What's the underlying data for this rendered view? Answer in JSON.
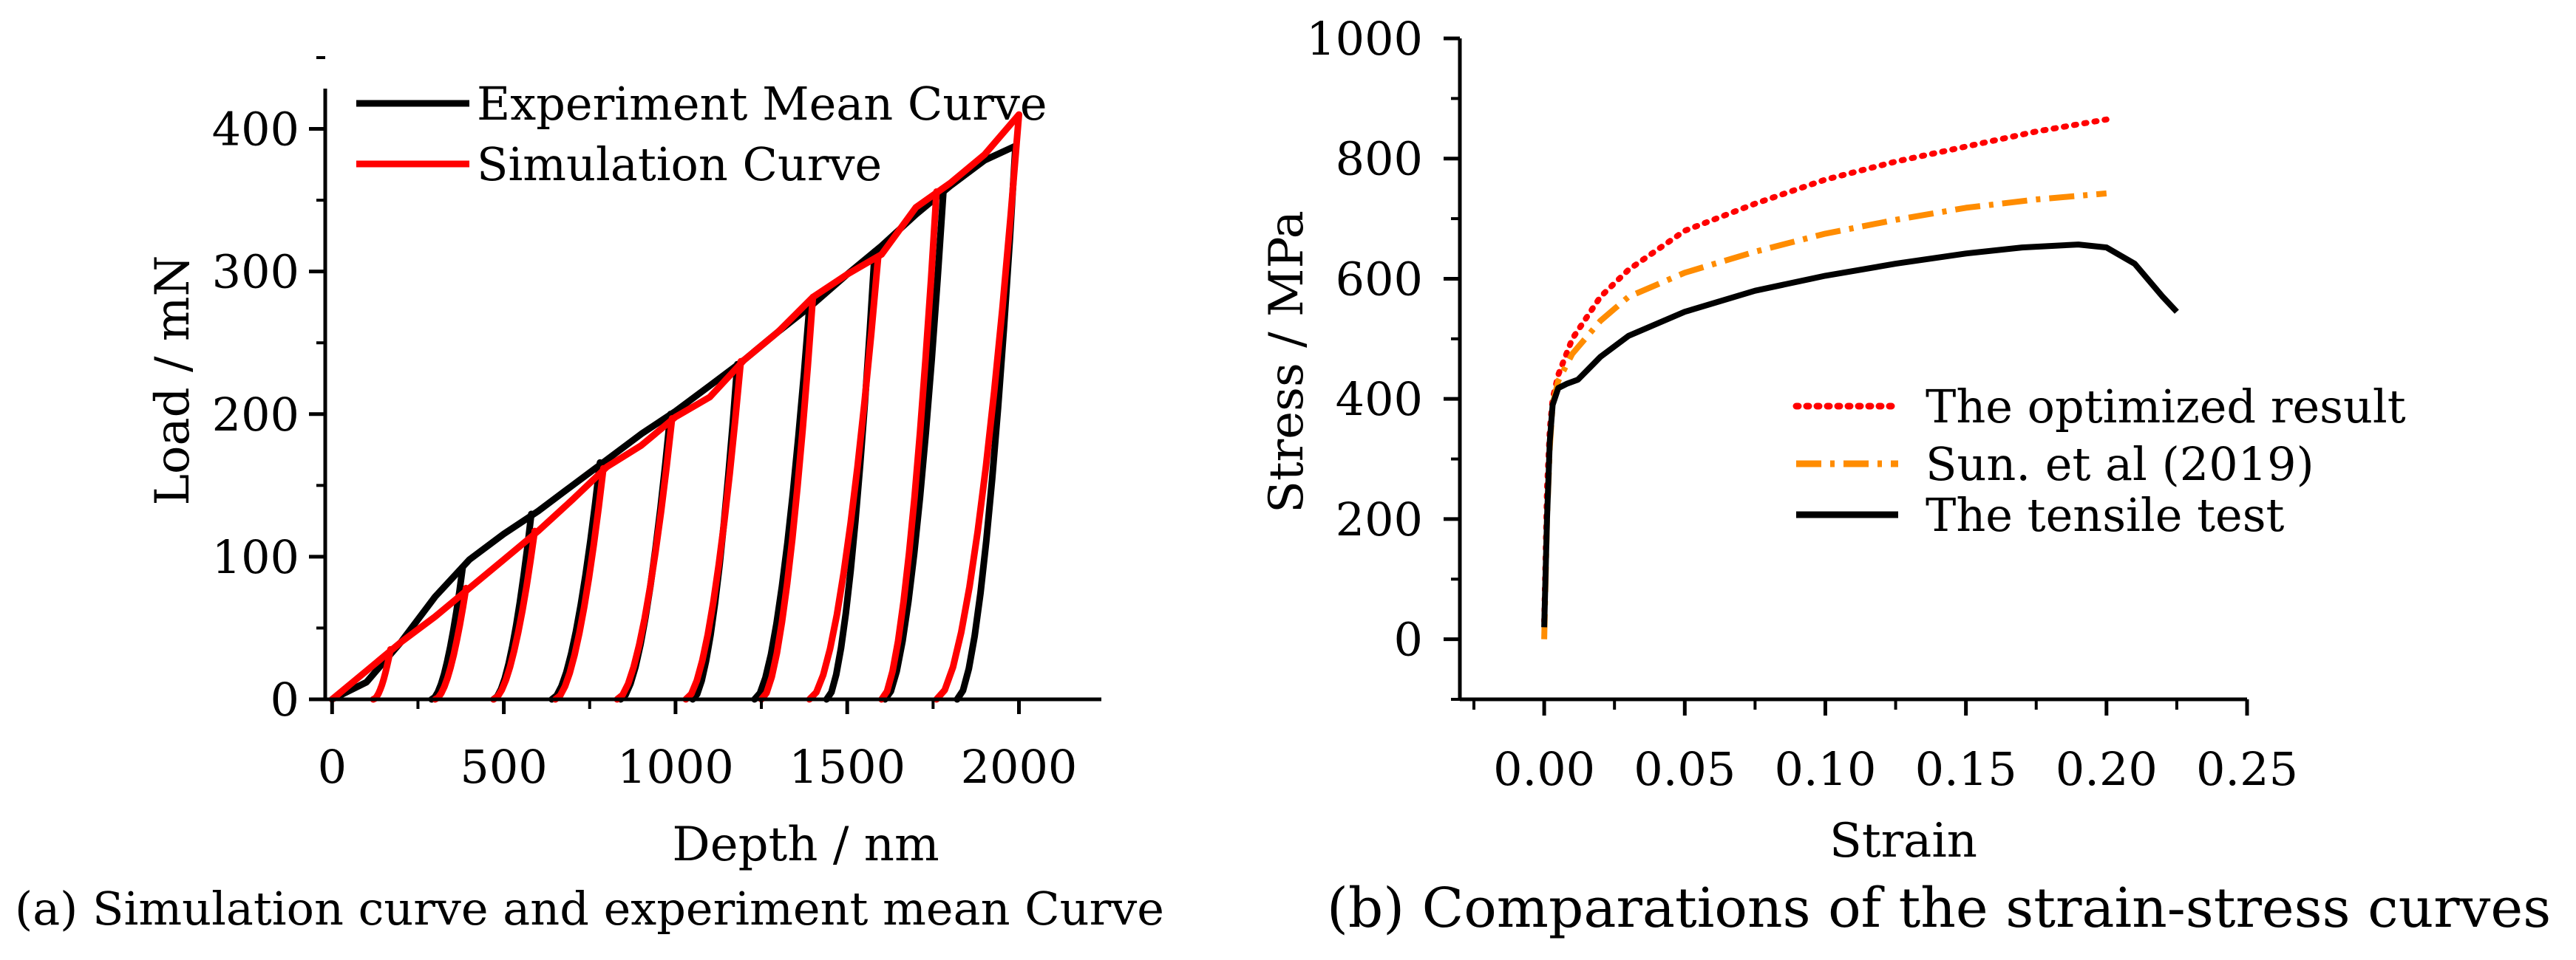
{
  "captions": {
    "a": "(a)  Simulation curve and experiment mean Curve",
    "b": "(b) Comparations of the strain-stress curves"
  },
  "chart_data": [
    {
      "type": "line",
      "title": "",
      "xlabel": "Depth / nm",
      "ylabel": "Load / mN",
      "xlim": [
        -20,
        2240
      ],
      "ylim": [
        0,
        450
      ],
      "xticks": [
        0,
        500,
        1000,
        1500,
        2000
      ],
      "yticks": [
        0,
        100,
        200,
        300,
        400
      ],
      "grid": false,
      "legend_position": "top-left",
      "series": [
        {
          "name": "Experiment Mean Curve",
          "color": "#000000",
          "style": "solid",
          "loading": [
            [
              0,
              0
            ],
            [
              100,
              12
            ],
            [
              200,
              40
            ],
            [
              300,
              72
            ],
            [
              400,
              98
            ],
            [
              500,
              116
            ],
            [
              600,
              132
            ],
            [
              700,
              150
            ],
            [
              800,
              168
            ],
            [
              900,
              186
            ],
            [
              1000,
              202
            ],
            [
              1100,
              220
            ],
            [
              1200,
              238
            ],
            [
              1300,
              258
            ],
            [
              1400,
              277
            ],
            [
              1500,
              298
            ],
            [
              1600,
              318
            ],
            [
              1700,
              340
            ],
            [
              1800,
              360
            ],
            [
              1900,
              378
            ],
            [
              1990,
              388
            ]
          ],
          "unloading": [
            {
              "peak": [
                380,
                92
              ],
              "zero": 290
            },
            {
              "peak": [
                580,
                130
              ],
              "zero": 470
            },
            {
              "peak": [
                780,
                166
              ],
              "zero": 640
            },
            {
              "peak": [
                985,
                200
              ],
              "zero": 840
            },
            {
              "peak": [
                1180,
                235
              ],
              "zero": 1050
            },
            {
              "peak": [
                1390,
                276
              ],
              "zero": 1230
            },
            {
              "peak": [
                1580,
                314
              ],
              "zero": 1440
            },
            {
              "peak": [
                1780,
                356
              ],
              "zero": 1610
            },
            {
              "peak": [
                1990,
                388
              ],
              "zero": 1820
            }
          ]
        },
        {
          "name": "Simulation Curve",
          "color": "#ff0000",
          "style": "solid",
          "loading": [
            [
              0,
              0
            ],
            [
              100,
              20
            ],
            [
              200,
              40
            ],
            [
              300,
              58
            ],
            [
              400,
              78
            ],
            [
              500,
              98
            ],
            [
              600,
              118
            ],
            [
              700,
              140
            ],
            [
              800,
              163
            ],
            [
              900,
              178
            ],
            [
              1000,
              198
            ],
            [
              1100,
              212
            ],
            [
              1200,
              238
            ],
            [
              1300,
              258
            ],
            [
              1400,
              282
            ],
            [
              1500,
              298
            ],
            [
              1600,
              312
            ],
            [
              1700,
              345
            ],
            [
              1800,
              362
            ],
            [
              1900,
              382
            ],
            [
              2000,
              410
            ]
          ],
          "unloading": [
            {
              "peak": [
                170,
                35
              ],
              "zero": 120
            },
            {
              "peak": [
                390,
                78
              ],
              "zero": 300
            },
            {
              "peak": [
                590,
                118
              ],
              "zero": 470
            },
            {
              "peak": [
                790,
                162
              ],
              "zero": 650
            },
            {
              "peak": [
                990,
                197
              ],
              "zero": 830
            },
            {
              "peak": [
                1190,
                237
              ],
              "zero": 1030
            },
            {
              "peak": [
                1400,
                282
              ],
              "zero": 1250
            },
            {
              "peak": [
                1590,
                310
              ],
              "zero": 1390
            },
            {
              "peak": [
                1760,
                356
              ],
              "zero": 1600
            },
            {
              "peak": [
                2000,
                410
              ],
              "zero": 1760
            }
          ]
        }
      ]
    },
    {
      "type": "line",
      "title": "",
      "xlabel": "Strain",
      "ylabel": "Stress / MPa",
      "xlim": [
        -0.03,
        0.25
      ],
      "ylim": [
        -100,
        1000
      ],
      "xticks": [
        0.0,
        0.05,
        0.1,
        0.15,
        0.2,
        0.25
      ],
      "xtick_labels": [
        "0.00",
        "0.05",
        "0.10",
        "0.15",
        "0.20",
        "0.25"
      ],
      "yticks": [
        0,
        200,
        400,
        600,
        800,
        1000
      ],
      "grid": false,
      "legend_position": "center-right",
      "series": [
        {
          "name": "The optimized result",
          "color": "#ff0000",
          "style": "dotted",
          "points": [
            [
              0.0,
              30
            ],
            [
              0.001,
              250
            ],
            [
              0.002,
              350
            ],
            [
              0.003,
              400
            ],
            [
              0.005,
              440
            ],
            [
              0.01,
              500
            ],
            [
              0.02,
              570
            ],
            [
              0.03,
              615
            ],
            [
              0.05,
              680
            ],
            [
              0.075,
              725
            ],
            [
              0.1,
              765
            ],
            [
              0.125,
              795
            ],
            [
              0.15,
              820
            ],
            [
              0.175,
              845
            ],
            [
              0.2,
              865
            ]
          ]
        },
        {
          "name": "Sun. et al (2019)",
          "color": "#ff8c00",
          "style": "dashdot",
          "points": [
            [
              0.0,
              0
            ],
            [
              0.001,
              200
            ],
            [
              0.002,
              320
            ],
            [
              0.003,
              390
            ],
            [
              0.005,
              430
            ],
            [
              0.01,
              475
            ],
            [
              0.02,
              530
            ],
            [
              0.03,
              570
            ],
            [
              0.05,
              610
            ],
            [
              0.075,
              645
            ],
            [
              0.1,
              675
            ],
            [
              0.125,
              698
            ],
            [
              0.15,
              718
            ],
            [
              0.175,
              732
            ],
            [
              0.2,
              742
            ]
          ]
        },
        {
          "name": "The tensile test",
          "color": "#000000",
          "style": "solid",
          "points": [
            [
              0.0,
              20
            ],
            [
              0.001,
              200
            ],
            [
              0.002,
              330
            ],
            [
              0.003,
              390
            ],
            [
              0.005,
              418
            ],
            [
              0.008,
              425
            ],
            [
              0.012,
              432
            ],
            [
              0.02,
              470
            ],
            [
              0.03,
              505
            ],
            [
              0.05,
              545
            ],
            [
              0.075,
              580
            ],
            [
              0.1,
              605
            ],
            [
              0.125,
              625
            ],
            [
              0.15,
              642
            ],
            [
              0.17,
              652
            ],
            [
              0.19,
              657
            ],
            [
              0.2,
              652
            ],
            [
              0.21,
              625
            ],
            [
              0.22,
              570
            ],
            [
              0.225,
              545
            ]
          ]
        }
      ]
    }
  ]
}
